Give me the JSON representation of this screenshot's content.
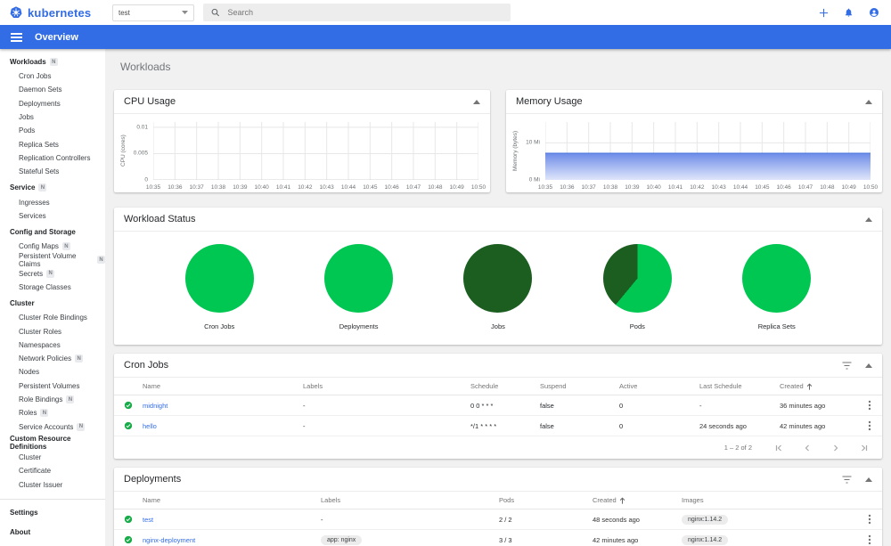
{
  "app": {
    "brand": "kubernetes",
    "namespace": "test",
    "search_placeholder": "Search",
    "toolbar_title": "Overview"
  },
  "colors": {
    "accent": "#326de6",
    "brand": "#326ce5",
    "status_ok": "#1aab4a",
    "pie_running": "#00c752",
    "pie_succeeded": "#1b5e20",
    "memory_fill_top": "#6d8ce8",
    "memory_fill_bottom": "#dfe6fa",
    "memory_line": "#4a73de"
  },
  "icons": {
    "search": "magnifier",
    "create": "plus",
    "notifications": "bell",
    "user": "account-circle",
    "menu": "hamburger",
    "namespace_caret": "caret-down",
    "filter": "filter-list",
    "collapse": "caret-up",
    "status_ok": "check-circle",
    "sort": "arrow-up",
    "row_menu": "kebab-vertical",
    "pagination": [
      "first-page",
      "previous-page",
      "next-page",
      "last-page"
    ]
  },
  "sidebar": {
    "groups": [
      {
        "label": "Workloads",
        "badge": "N",
        "items": [
          {
            "label": "Cron Jobs"
          },
          {
            "label": "Daemon Sets"
          },
          {
            "label": "Deployments"
          },
          {
            "label": "Jobs"
          },
          {
            "label": "Pods"
          },
          {
            "label": "Replica Sets"
          },
          {
            "label": "Replication Controllers"
          },
          {
            "label": "Stateful Sets"
          }
        ]
      },
      {
        "label": "Service",
        "badge": "N",
        "items": [
          {
            "label": "Ingresses"
          },
          {
            "label": "Services"
          }
        ]
      },
      {
        "label": "Config and Storage",
        "items": [
          {
            "label": "Config Maps",
            "badge": "N"
          },
          {
            "label": "Persistent Volume Claims",
            "badge": "N"
          },
          {
            "label": "Secrets",
            "badge": "N"
          },
          {
            "label": "Storage Classes"
          }
        ]
      },
      {
        "label": "Cluster",
        "items": [
          {
            "label": "Cluster Role Bindings"
          },
          {
            "label": "Cluster Roles"
          },
          {
            "label": "Namespaces"
          },
          {
            "label": "Network Policies",
            "badge": "N"
          },
          {
            "label": "Nodes"
          },
          {
            "label": "Persistent Volumes"
          },
          {
            "label": "Role Bindings",
            "badge": "N"
          },
          {
            "label": "Roles",
            "badge": "N"
          },
          {
            "label": "Service Accounts",
            "badge": "N"
          }
        ]
      },
      {
        "label": "Custom Resource Definitions",
        "items": [
          {
            "label": "Cluster"
          },
          {
            "label": "Certificate"
          },
          {
            "label": "Cluster Issuer"
          }
        ]
      }
    ],
    "footer": [
      {
        "label": "Settings"
      },
      {
        "label": "About"
      }
    ]
  },
  "page": {
    "title": "Workloads"
  },
  "chart_data": [
    {
      "id": "cpu",
      "type": "line",
      "title": "CPU Usage",
      "ylabel": "CPU (cores)",
      "ymax": 0.011,
      "yticks": [
        {
          "label": "0",
          "value": 0
        },
        {
          "label": "0.005",
          "value": 0.005
        },
        {
          "label": "0.01",
          "value": 0.01
        }
      ],
      "x": [
        "10:35",
        "10:36",
        "10:37",
        "10:38",
        "10:39",
        "10:40",
        "10:41",
        "10:42",
        "10:43",
        "10:44",
        "10:45",
        "10:46",
        "10:47",
        "10:48",
        "10:49",
        "10:50"
      ],
      "series": []
    },
    {
      "id": "memory",
      "type": "area",
      "title": "Memory Usage",
      "ylabel": "Memory (bytes)",
      "ymax": 15.6,
      "unit": "Mi",
      "yticks": [
        {
          "label": "0 Mi",
          "value": 0
        },
        {
          "label": "10 Mi",
          "value": 10
        }
      ],
      "x": [
        "10:35",
        "10:36",
        "10:37",
        "10:38",
        "10:39",
        "10:40",
        "10:41",
        "10:42",
        "10:43",
        "10:44",
        "10:45",
        "10:46",
        "10:47",
        "10:48",
        "10:49",
        "10:50"
      ],
      "series": [
        {
          "name": "Memory usage",
          "value": 7.2
        }
      ]
    },
    {
      "id": "workload-status",
      "type": "pie-group",
      "title": "Workload Status",
      "pies": [
        {
          "label": "Cron Jobs",
          "slices": [
            {
              "name": "running",
              "percent": 100,
              "color": "#00c752"
            }
          ]
        },
        {
          "label": "Deployments",
          "slices": [
            {
              "name": "running",
              "percent": 100,
              "color": "#00c752"
            }
          ]
        },
        {
          "label": "Jobs",
          "slices": [
            {
              "name": "succeeded",
              "percent": 100,
              "color": "#1b5e20"
            }
          ]
        },
        {
          "label": "Pods",
          "slices": [
            {
              "name": "running",
              "percent": 61,
              "color": "#00c752"
            },
            {
              "name": "succeeded",
              "percent": 39,
              "color": "#1b5e20"
            }
          ]
        },
        {
          "label": "Replica Sets",
          "slices": [
            {
              "name": "running",
              "percent": 100,
              "color": "#00c752"
            }
          ]
        }
      ]
    }
  ],
  "tables": {
    "cron_jobs": {
      "title": "Cron Jobs",
      "columns": [
        "Name",
        "Labels",
        "Schedule",
        "Suspend",
        "Active",
        "Last Schedule",
        "Created"
      ],
      "sort_column": "Created",
      "rows": [
        {
          "status_icon": "check-circle",
          "cells": [
            {
              "text": "midnight",
              "type": "link"
            },
            {
              "text": "-",
              "type": "plain"
            },
            {
              "text": "0 0 * * *",
              "type": "plain"
            },
            {
              "text": "false",
              "type": "plain"
            },
            {
              "text": "0",
              "type": "plain"
            },
            {
              "text": "-",
              "type": "underline"
            },
            {
              "text": "36 minutes ago",
              "type": "underline"
            }
          ]
        },
        {
          "status_icon": "check-circle",
          "cells": [
            {
              "text": "hello",
              "type": "link"
            },
            {
              "text": "-",
              "type": "plain"
            },
            {
              "text": "*/1 * * * *",
              "type": "plain"
            },
            {
              "text": "false",
              "type": "plain"
            },
            {
              "text": "0",
              "type": "plain"
            },
            {
              "text": "24 seconds ago",
              "type": "underline"
            },
            {
              "text": "42 minutes ago",
              "type": "underline"
            }
          ]
        }
      ],
      "pagination": {
        "range": "1 – 2 of 2"
      }
    },
    "deployments": {
      "title": "Deployments",
      "columns": [
        "Name",
        "Labels",
        "Pods",
        "Created",
        "Images"
      ],
      "sort_column": "Created",
      "rows": [
        {
          "status_icon": "check-circle",
          "cells": [
            {
              "text": "test",
              "type": "link"
            },
            {
              "text": "-",
              "type": "plain"
            },
            {
              "text": "2 / 2",
              "type": "plain"
            },
            {
              "text": "48 seconds ago",
              "type": "underline"
            },
            {
              "text": "nginx:1.14.2",
              "type": "chip"
            }
          ]
        },
        {
          "status_icon": "check-circle",
          "cells": [
            {
              "text": "nginx-deployment",
              "type": "link"
            },
            {
              "text": "app: nginx",
              "type": "chip"
            },
            {
              "text": "3 / 3",
              "type": "plain"
            },
            {
              "text": "42 minutes ago",
              "type": "underline"
            },
            {
              "text": "nginx:1.14.2",
              "type": "chip"
            }
          ]
        }
      ]
    }
  }
}
